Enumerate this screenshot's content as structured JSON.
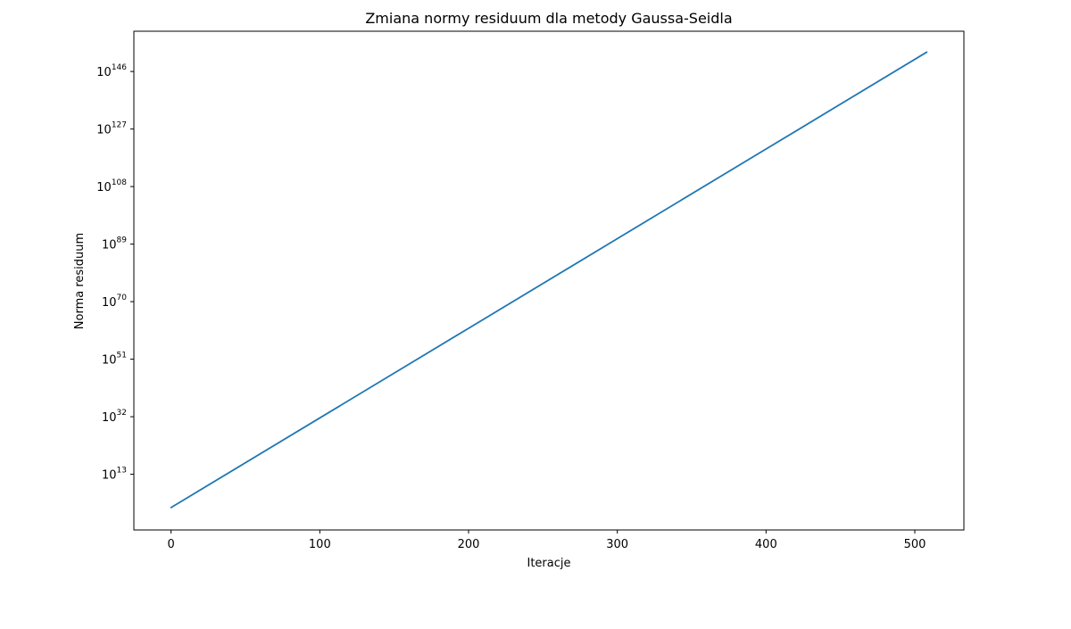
{
  "chart_data": {
    "type": "line",
    "title": "Zmiana normy residuum dla metody Gaussa-Seidla",
    "xlabel": "Iteracje",
    "ylabel": "Norma residuum",
    "y_scale": "log",
    "xlim": [
      -25,
      533
    ],
    "ylim_log10": [
      -5.4,
      159.3
    ],
    "grid": false,
    "legend": "none",
    "x_ticks": [
      0,
      100,
      200,
      300,
      400,
      500
    ],
    "y_ticks_exponent": [
      13,
      32,
      51,
      70,
      89,
      108,
      127,
      146
    ],
    "y_tick_base": "10",
    "series": [
      {
        "x": [
          0,
          100,
          200,
          300,
          400,
          508
        ],
        "y_log10": [
          2.0,
          31.6,
          61.2,
          90.8,
          120.4,
          152.4
        ],
        "color": "#1f77b4"
      }
    ]
  }
}
